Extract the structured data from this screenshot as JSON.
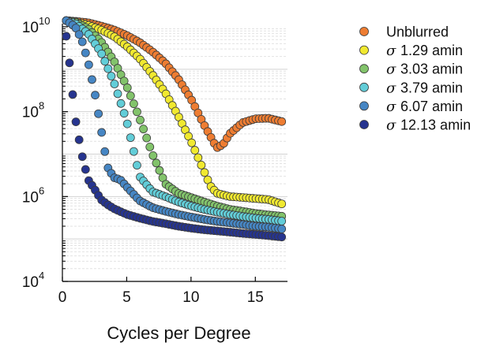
{
  "chart_data": {
    "type": "scatter",
    "xlabel": "Cycles per Degree",
    "ylabel": "",
    "xlim": [
      0,
      17.5
    ],
    "ylim": [
      10000,
      10000000000
    ],
    "y_scale": "log",
    "x_ticks": [
      0,
      5,
      10,
      15
    ],
    "x_tick_labels": [
      "0",
      "5",
      "10",
      "15"
    ],
    "y_ticks": [
      {
        "value": 10000,
        "base": "10",
        "exp": "4"
      },
      {
        "value": 1000000,
        "base": "10",
        "exp": "6"
      },
      {
        "value": 100000000,
        "base": "10",
        "exp": "8"
      },
      {
        "value": 10000000000,
        "base": "10",
        "exp": "10"
      }
    ],
    "grid": true,
    "legend_position": "right",
    "x_step": 0.25,
    "series": [
      {
        "label": "Unblurred",
        "sigma_symbol": "",
        "color": "#ee7d32",
        "anchors": [
          [
            0.3,
            14000000000
          ],
          [
            1,
            13500000000
          ],
          [
            2,
            12500000000
          ],
          [
            3,
            10500000000
          ],
          [
            4,
            8500000000
          ],
          [
            5,
            6300000000
          ],
          [
            6,
            4300000000
          ],
          [
            7,
            2600000000
          ],
          [
            8,
            1400000000
          ],
          [
            9,
            600000000
          ],
          [
            10,
            200000000
          ],
          [
            11,
            50000000
          ],
          [
            12,
            14000000
          ],
          [
            12.5,
            17000000
          ],
          [
            13,
            30000000
          ],
          [
            14,
            55000000
          ],
          [
            15,
            68000000
          ],
          [
            16,
            70000000
          ],
          [
            17.2,
            57000000
          ]
        ]
      },
      {
        "label": "1.29 amin",
        "sigma_symbol": "σ",
        "color": "#f1e930",
        "anchors": [
          [
            0.3,
            14000000000
          ],
          [
            1,
            13000000000
          ],
          [
            2,
            11000000000
          ],
          [
            3,
            8500000000
          ],
          [
            4,
            6000000000
          ],
          [
            5,
            3500000000
          ],
          [
            6,
            1800000000
          ],
          [
            7,
            750000000
          ],
          [
            8,
            280000000
          ],
          [
            9,
            80000000
          ],
          [
            10,
            20000000
          ],
          [
            11,
            4000000
          ],
          [
            11.5,
            1800000
          ],
          [
            12,
            1200000
          ],
          [
            13,
            1000000
          ],
          [
            14,
            950000
          ],
          [
            15,
            900000
          ],
          [
            16,
            850000
          ],
          [
            17.2,
            650000
          ]
        ]
      },
      {
        "label": "3.03 amin",
        "sigma_symbol": "σ",
        "color": "#82c36b",
        "anchors": [
          [
            0.3,
            14000000000
          ],
          [
            1,
            13000000000
          ],
          [
            2,
            9000000000
          ],
          [
            3,
            4500000000
          ],
          [
            4,
            1600000000
          ],
          [
            5,
            400000000
          ],
          [
            6,
            70000000
          ],
          [
            7,
            10000000
          ],
          [
            8,
            2000000
          ],
          [
            9,
            1200000
          ],
          [
            10,
            950000
          ],
          [
            11,
            750000
          ],
          [
            12,
            600000
          ],
          [
            13,
            500000
          ],
          [
            14,
            450000
          ],
          [
            15,
            400000
          ],
          [
            16,
            370000
          ],
          [
            17.2,
            340000
          ]
        ]
      },
      {
        "label": "3.79 amin",
        "sigma_symbol": "σ",
        "color": "#62cdd8",
        "anchors": [
          [
            0.3,
            14000000000
          ],
          [
            1,
            12000000000
          ],
          [
            2,
            7000000000
          ],
          [
            3,
            2500000000
          ],
          [
            4,
            500000000
          ],
          [
            5,
            60000000
          ],
          [
            6,
            3000000
          ],
          [
            7,
            1300000
          ],
          [
            8,
            1000000
          ],
          [
            9,
            750000
          ],
          [
            10,
            600000
          ],
          [
            11,
            500000
          ],
          [
            12,
            430000
          ],
          [
            13,
            380000
          ],
          [
            14,
            340000
          ],
          [
            15,
            310000
          ],
          [
            16,
            290000
          ],
          [
            17.2,
            260000
          ]
        ]
      },
      {
        "label": "6.07 amin",
        "sigma_symbol": "σ",
        "color": "#4686c4",
        "anchors": [
          [
            0.3,
            14000000000
          ],
          [
            1,
            10000000000
          ],
          [
            1.5,
            5000000000
          ],
          [
            2,
            1500000000
          ],
          [
            2.5,
            300000000
          ],
          [
            3,
            40000000
          ],
          [
            3.5,
            5000000
          ],
          [
            4,
            2800000
          ],
          [
            4.5,
            2500000
          ],
          [
            5,
            1700000
          ],
          [
            6,
            800000
          ],
          [
            7,
            550000
          ],
          [
            8,
            450000
          ],
          [
            9,
            380000
          ],
          [
            10,
            330000
          ],
          [
            11,
            290000
          ],
          [
            12,
            260000
          ],
          [
            13,
            240000
          ],
          [
            14,
            220000
          ],
          [
            15,
            200000
          ],
          [
            16,
            190000
          ],
          [
            17.2,
            170000
          ]
        ]
      },
      {
        "label": "12.13 amin",
        "sigma_symbol": "σ",
        "color": "#26348f",
        "anchors": [
          [
            0.3,
            6000000000
          ],
          [
            0.5,
            2000000000
          ],
          [
            0.75,
            350000000
          ],
          [
            1,
            70000000
          ],
          [
            1.5,
            10000000
          ],
          [
            2,
            2500000
          ],
          [
            2.5,
            1500000
          ],
          [
            3,
            850000
          ],
          [
            3.5,
            650000
          ],
          [
            4,
            520000
          ],
          [
            5,
            380000
          ],
          [
            6,
            310000
          ],
          [
            7,
            260000
          ],
          [
            8,
            230000
          ],
          [
            9,
            200000
          ],
          [
            10,
            180000
          ],
          [
            11,
            165000
          ],
          [
            12,
            155000
          ],
          [
            13,
            145000
          ],
          [
            14,
            135000
          ],
          [
            15,
            128000
          ],
          [
            16,
            120000
          ],
          [
            17.2,
            110000
          ]
        ]
      }
    ]
  }
}
